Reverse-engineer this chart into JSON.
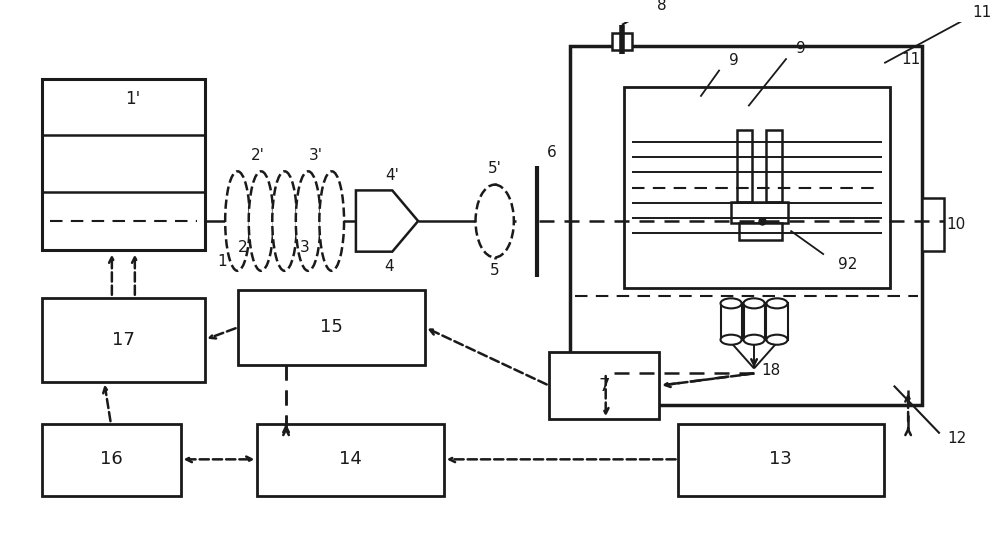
{
  "bg_color": "#ffffff",
  "lc": "#1a1a1a",
  "figsize": [
    10.0,
    5.44
  ],
  "dpi": 100
}
